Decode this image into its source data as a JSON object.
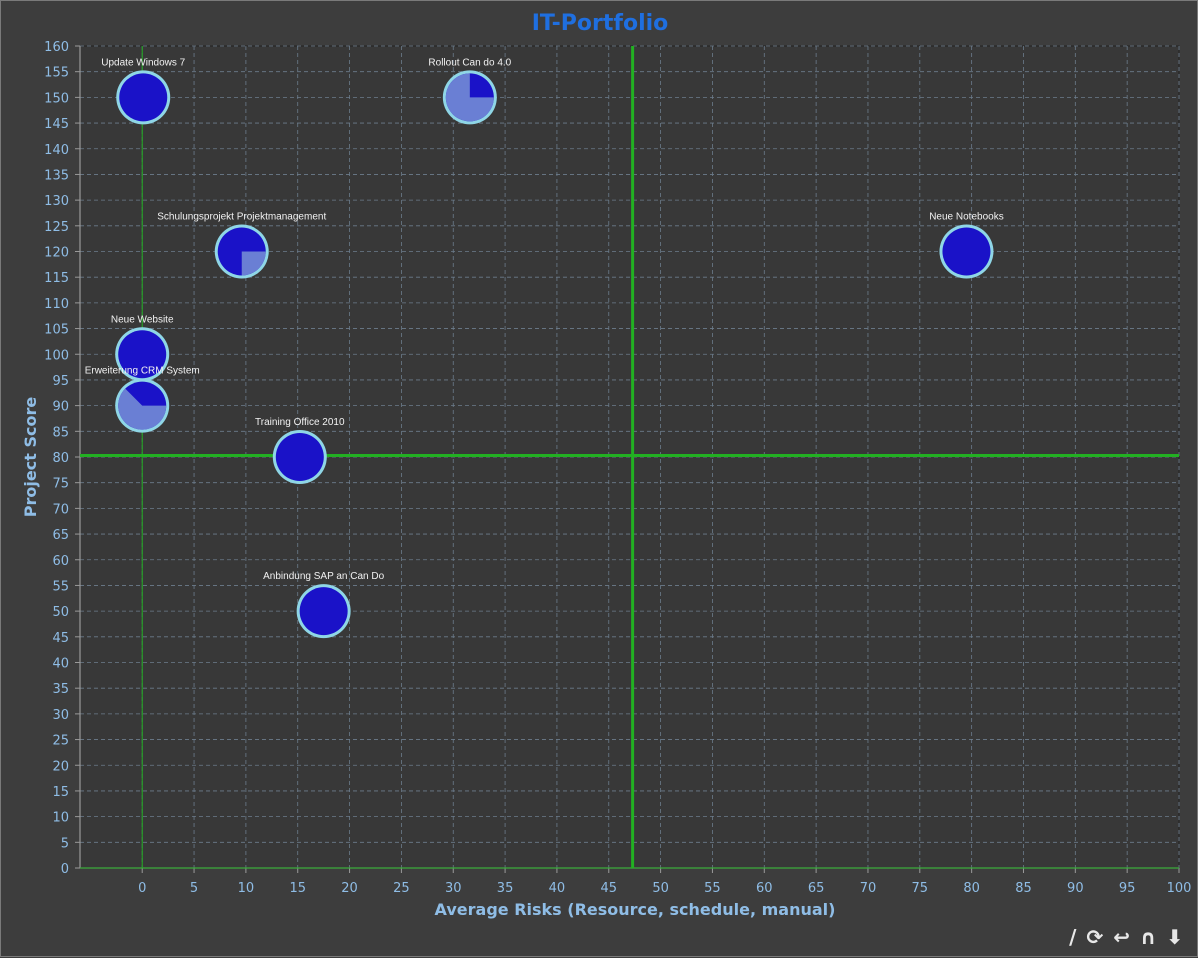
{
  "chart_data": {
    "type": "bubble",
    "title": "IT-Portfolio",
    "xlabel": "Average Risks (Resource, schedule, manual)",
    "ylabel": "Project Score",
    "xlim": [
      -6,
      100
    ],
    "ylim": [
      0,
      160
    ],
    "x_ticks": [
      0,
      5,
      10,
      15,
      20,
      25,
      30,
      35,
      40,
      45,
      50,
      55,
      60,
      65,
      70,
      75,
      80,
      85,
      90,
      95,
      100
    ],
    "y_ticks": [
      0,
      5,
      10,
      15,
      20,
      25,
      30,
      35,
      40,
      45,
      50,
      55,
      60,
      65,
      70,
      75,
      80,
      85,
      90,
      95,
      100,
      105,
      110,
      115,
      120,
      125,
      130,
      135,
      140,
      145,
      150,
      155,
      160
    ],
    "grid": true,
    "reference_lines": {
      "x_thick": 47.3,
      "x_thin": 0,
      "y_thick": 80.3
    },
    "colors": {
      "bubble_fill": "#1a12c8",
      "bubble_progress": "#6a7fd4",
      "bubble_border": "#8fd6e6",
      "grid": "#6c7c8c",
      "reference": "#22b022",
      "background": "#3d3d3d"
    },
    "points": [
      {
        "label": "Update Windows 7",
        "x": 0.1,
        "y": 150,
        "progress": 0
      },
      {
        "label": "Rollout Can do 4.0",
        "x": 31.6,
        "y": 150,
        "progress": 0.75
      },
      {
        "label": "Schulungsprojekt Projektmanagement",
        "x": 9.6,
        "y": 120,
        "progress": 0.25
      },
      {
        "label": "Neue Notebooks",
        "x": 79.5,
        "y": 120,
        "progress": 0
      },
      {
        "label": "Neue Website",
        "x": 0,
        "y": 100,
        "progress": 0
      },
      {
        "label": "Erweiterung CRM System",
        "x": 0,
        "y": 90,
        "progress": 0.625
      },
      {
        "label": "Training Office 2010",
        "x": 15.2,
        "y": 80,
        "progress": 0
      },
      {
        "label": "Anbindung SAP an Can Do",
        "x": 17.5,
        "y": 50,
        "progress": 0
      }
    ]
  },
  "toolbar": {
    "icons": [
      "slash-icon",
      "refresh-icon",
      "undo-icon",
      "arch-icon",
      "down-arrow-icon"
    ],
    "glyphs": [
      "/",
      "⟳",
      "↩",
      "∩",
      "⬇"
    ]
  }
}
